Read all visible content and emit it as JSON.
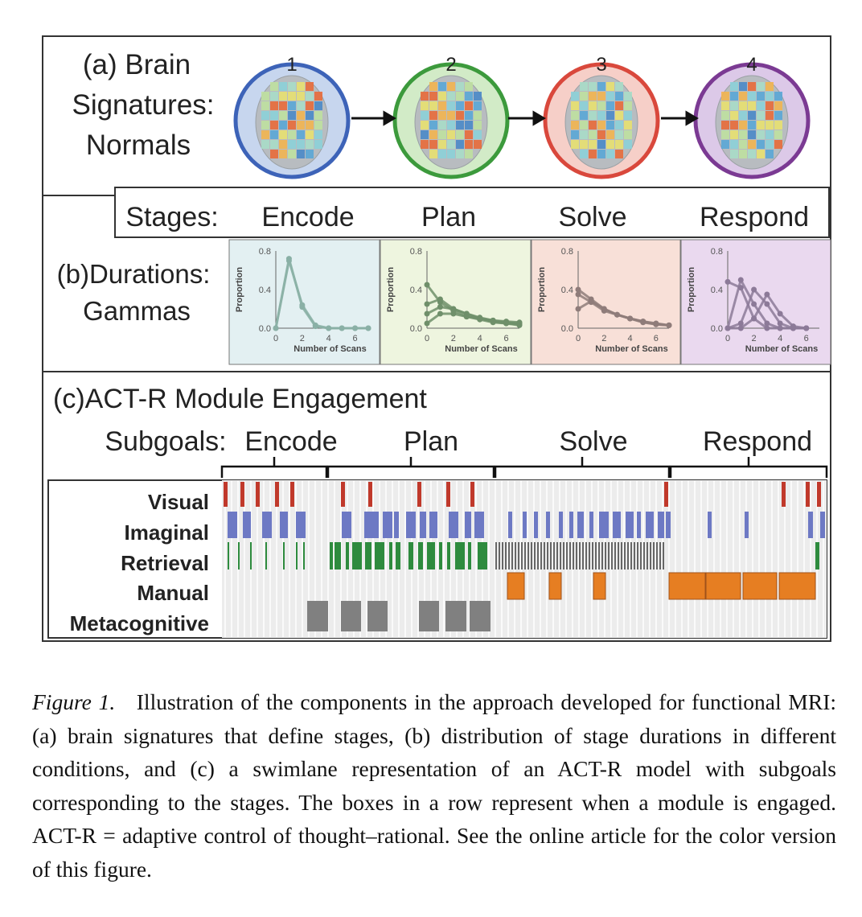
{
  "figure": {
    "panel_a": {
      "title_lines": [
        "(a) Brain",
        "Signatures:",
        "Normals"
      ],
      "brains": [
        {
          "label": "1",
          "ring_color": "#3d63b8",
          "fill": "#c7d6ee"
        },
        {
          "label": "2",
          "ring_color": "#3c9a3c",
          "fill": "#d2ebc7"
        },
        {
          "label": "3",
          "ring_color": "#d9483c",
          "fill": "#f6cfc8"
        },
        {
          "label": "4",
          "ring_color": "#7b3a93",
          "fill": "#dcc9e8"
        }
      ]
    },
    "stages": {
      "label": "Stages:",
      "names": [
        "Encode",
        "Plan",
        "Solve",
        "Respond"
      ]
    },
    "panel_b": {
      "title_lines": [
        "(b)Durations:",
        "Gammas"
      ]
    },
    "panel_c": {
      "title": "(c)ACT-R Module Engagement",
      "subgoals_label": "Subgoals:",
      "subgoals": [
        "Encode",
        "Plan",
        "Solve",
        "Respond"
      ],
      "modules": [
        "Visual",
        "Imaginal",
        "Retrieval",
        "Manual",
        "Metacognitive"
      ],
      "module_colors": {
        "Visual": "#c0392b",
        "Imaginal": "#6d79c4",
        "Retrieval": "#2e8b3e",
        "Manual": "#e67e22",
        "Metacognitive": "#808080"
      }
    }
  },
  "chart_data": [
    {
      "type": "line",
      "stage": "Encode",
      "background": "#e3f0f2",
      "color": "#8ab0a6",
      "xlabel": "Number of Scans",
      "ylabel": "Proportion",
      "xlim": [
        0,
        7
      ],
      "ylim": [
        0,
        0.8
      ],
      "xticks": [
        "0",
        "2",
        "4",
        "6"
      ],
      "yticks": [
        "0.0",
        "0.4",
        "0.8"
      ],
      "series": [
        {
          "x": [
            0,
            1,
            2,
            3,
            4,
            5,
            6,
            7
          ],
          "y": [
            0.0,
            0.72,
            0.22,
            0.02,
            0.0,
            0.0,
            0.0,
            0.0
          ]
        },
        {
          "x": [
            0,
            1,
            2,
            3,
            4,
            5,
            6,
            7
          ],
          "y": [
            0.0,
            0.7,
            0.24,
            0.03,
            0.0,
            0.0,
            0.0,
            0.0
          ]
        }
      ]
    },
    {
      "type": "line",
      "stage": "Plan",
      "background": "#eef5df",
      "color": "#6f8f6a",
      "xlabel": "Number of Scans",
      "ylabel": "Proportion",
      "xlim": [
        0,
        7
      ],
      "ylim": [
        0,
        0.8
      ],
      "xticks": [
        "0",
        "2",
        "4",
        "6"
      ],
      "yticks": [
        "0.0",
        "0.4",
        "0.8"
      ],
      "series": [
        {
          "x": [
            0,
            1,
            2,
            3,
            4,
            5,
            6,
            7
          ],
          "y": [
            0.45,
            0.27,
            0.18,
            0.12,
            0.09,
            0.06,
            0.05,
            0.03
          ]
        },
        {
          "x": [
            0,
            1,
            2,
            3,
            4,
            5,
            6,
            7
          ],
          "y": [
            0.25,
            0.3,
            0.2,
            0.15,
            0.1,
            0.07,
            0.05,
            0.04
          ]
        },
        {
          "x": [
            0,
            1,
            2,
            3,
            4,
            5,
            6,
            7
          ],
          "y": [
            0.15,
            0.22,
            0.2,
            0.15,
            0.11,
            0.08,
            0.06,
            0.05
          ]
        },
        {
          "x": [
            0,
            1,
            2,
            3,
            4,
            5,
            6,
            7
          ],
          "y": [
            0.05,
            0.15,
            0.15,
            0.12,
            0.1,
            0.08,
            0.07,
            0.06
          ]
        }
      ]
    },
    {
      "type": "line",
      "stage": "Solve",
      "background": "#f8e0d8",
      "color": "#8f7c7a",
      "xlabel": "Number of Scans",
      "ylabel": "Proportion",
      "xlim": [
        0,
        7
      ],
      "ylim": [
        0,
        0.8
      ],
      "xticks": [
        "0",
        "2",
        "4",
        "6"
      ],
      "yticks": [
        "0.0",
        "0.4",
        "0.8"
      ],
      "series": [
        {
          "x": [
            0,
            1,
            2,
            3,
            4,
            5,
            6,
            7
          ],
          "y": [
            0.4,
            0.3,
            0.2,
            0.14,
            0.1,
            0.06,
            0.04,
            0.03
          ]
        },
        {
          "x": [
            0,
            1,
            2,
            3,
            4,
            5,
            6,
            7
          ],
          "y": [
            0.2,
            0.28,
            0.2,
            0.14,
            0.1,
            0.07,
            0.05,
            0.03
          ]
        },
        {
          "x": [
            0,
            1,
            2,
            3,
            4,
            5,
            6,
            7
          ],
          "y": [
            0.35,
            0.27,
            0.18,
            0.14,
            0.1,
            0.07,
            0.04,
            0.03
          ]
        }
      ]
    },
    {
      "type": "line",
      "stage": "Respond",
      "background": "#ead9ef",
      "color": "#8c7a98",
      "xlabel": "Number of Scans",
      "ylabel": "Proportion",
      "xlim": [
        0,
        7
      ],
      "ylim": [
        0,
        0.8
      ],
      "xticks": [
        "0",
        "2",
        "4",
        "6"
      ],
      "yticks": [
        "0.0",
        "0.4",
        "0.8"
      ],
      "series": [
        {
          "x": [
            0,
            1,
            2,
            3,
            4,
            5,
            6
          ],
          "y": [
            0.48,
            0.42,
            0.1,
            0.0,
            0.0,
            0.0,
            0.0
          ]
        },
        {
          "x": [
            0,
            1,
            2,
            3,
            4,
            5,
            6
          ],
          "y": [
            0.0,
            0.5,
            0.25,
            0.05,
            0.0,
            0.0,
            0.0
          ]
        },
        {
          "x": [
            0,
            1,
            2,
            3,
            4,
            5,
            6
          ],
          "y": [
            0.0,
            0.05,
            0.4,
            0.25,
            0.05,
            0.0,
            0.0
          ]
        },
        {
          "x": [
            0,
            1,
            2,
            3,
            4,
            5,
            6
          ],
          "y": [
            0.0,
            0.0,
            0.1,
            0.35,
            0.15,
            0.02,
            0.0
          ]
        }
      ]
    }
  ],
  "caption": {
    "label": "Figure 1.",
    "text": "Illustration of the components in the approach developed for functional MRI: (a) brain signatures that define stages, (b) distribution of stage durations in different conditions, and (c) a swimlane representation of an ACT-R model with subgoals corresponding to the stages. The boxes in a row represent when a module is engaged. ACT-R = adaptive control of thought–rational. See the online article for the color version of this figure."
  }
}
